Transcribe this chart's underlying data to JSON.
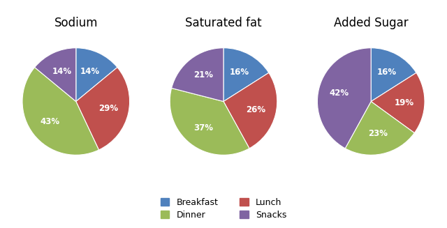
{
  "charts": [
    {
      "title": "Sodium",
      "values": [
        14,
        29,
        43,
        14
      ],
      "colors": [
        "#4F81BD",
        "#C0504D",
        "#9BBB59",
        "#8064A2"
      ],
      "startangle": 90
    },
    {
      "title": "Saturated fat",
      "values": [
        16,
        26,
        37,
        21
      ],
      "colors": [
        "#4F81BD",
        "#C0504D",
        "#9BBB59",
        "#8064A2"
      ],
      "startangle": 90
    },
    {
      "title": "Added Sugar",
      "values": [
        16,
        19,
        23,
        42
      ],
      "colors": [
        "#4F81BD",
        "#C0504D",
        "#9BBB59",
        "#8064A2"
      ],
      "startangle": 90
    }
  ],
  "legend_labels": [
    "Breakfast",
    "Dinner",
    "Lunch",
    "Snacks"
  ],
  "legend_colors": [
    "#4F81BD",
    "#9BBB59",
    "#C0504D",
    "#8064A2"
  ],
  "background_color": "#FFFFFF",
  "title_fontsize": 12,
  "label_fontsize": 8.5
}
